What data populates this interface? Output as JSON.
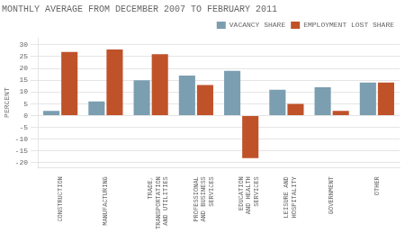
{
  "chart_data": {
    "type": "bar",
    "title": "MONTHLY AVERAGE FROM DECEMBER 2007 TO FEBRUARY 2011",
    "categories": [
      "CONSTRUCTION",
      "MANUFACTURING",
      "TRADE,\nTRANSPORTATION\nAND UTILITIES",
      "PROFESSIONAL\nAND BUSINESS\nSERVICES",
      "EDUCATION\nAND HEALTH\nSERVICES",
      "LEISURE AND\nHOSPITALITY",
      "GOVERNMENT",
      "OTHER"
    ],
    "series": [
      {
        "name": "VACANCY SHARE",
        "color": "#7b9eb0",
        "values": [
          2,
          6,
          15,
          17,
          19,
          11,
          12,
          14
        ]
      },
      {
        "name": "EMPLOYMENT LOST SHARE",
        "color": "#c0522a",
        "values": [
          27,
          28,
          26,
          13,
          -18,
          5,
          2,
          14
        ]
      }
    ],
    "ylabel": "PERCENT",
    "ylim": [
      -22,
      33
    ],
    "yticks": [
      -20,
      -15,
      -10,
      -5,
      0,
      5,
      10,
      15,
      20,
      25,
      30
    ],
    "grid": true,
    "legend": "upper right"
  }
}
